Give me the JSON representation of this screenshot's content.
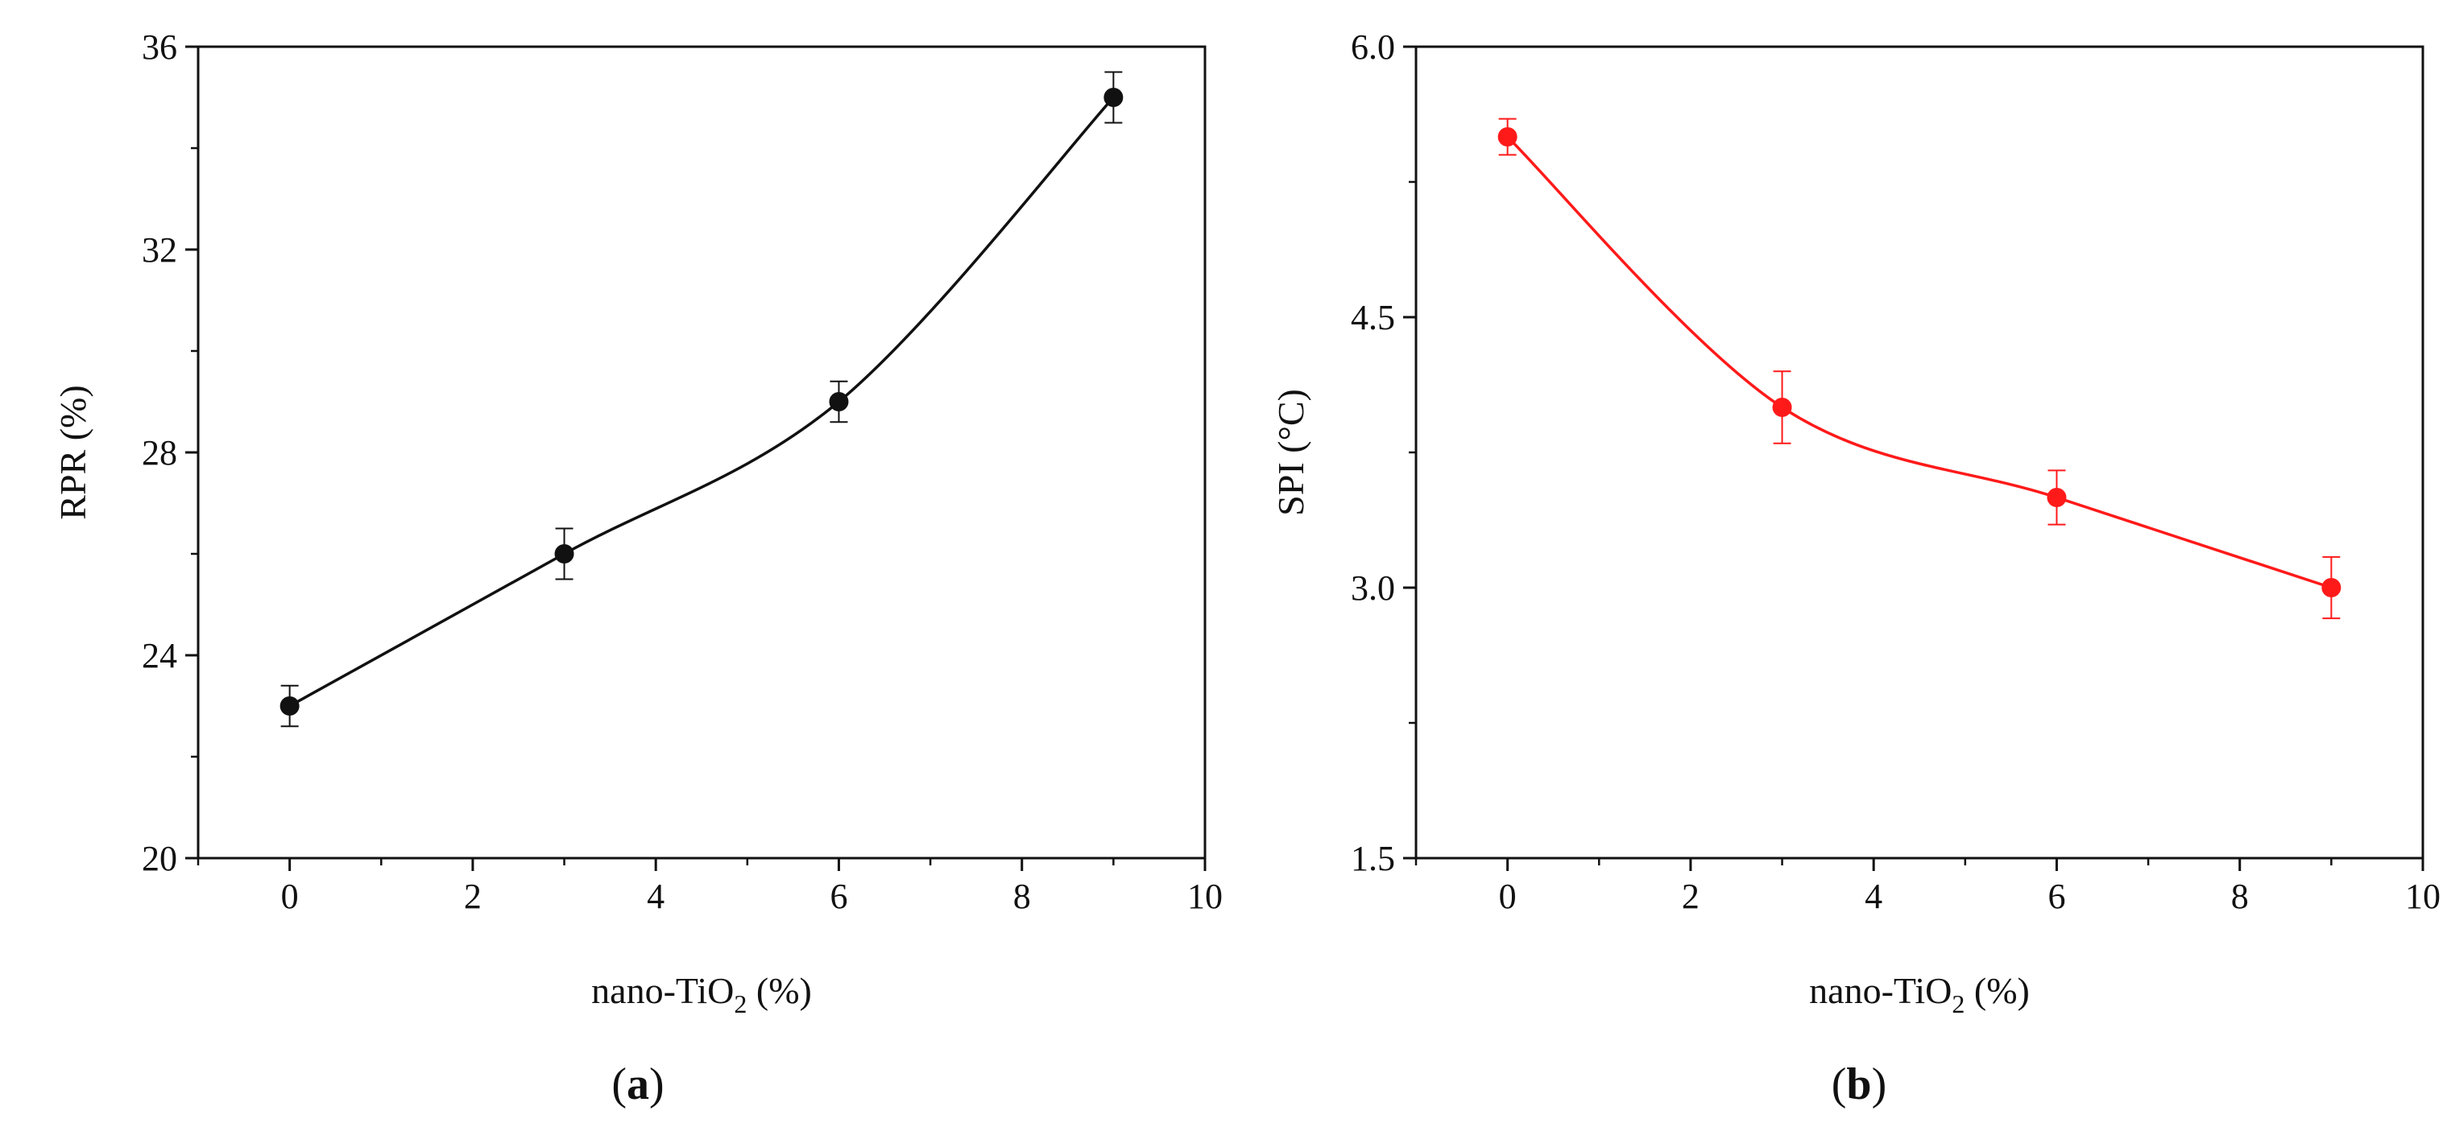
{
  "chart_data": [
    {
      "type": "line",
      "panel_label": "a",
      "xlabel": {
        "main": "nano-TiO",
        "sub": "2",
        "unit": " (%)"
      },
      "ylabel": "RPR (%)",
      "xlim": [
        -1,
        10
      ],
      "ylim": [
        20,
        36
      ],
      "xticks": [
        0,
        2,
        4,
        6,
        8,
        10
      ],
      "yticks": [
        20,
        24,
        28,
        32,
        36
      ],
      "y_minor_step": 2,
      "x_minor_step": 1,
      "grid": false,
      "color": "#111111",
      "series": [
        {
          "name": "RPR",
          "x": [
            0,
            3,
            6,
            9
          ],
          "y": [
            23,
            26,
            29,
            35
          ],
          "err": [
            0.4,
            0.5,
            0.4,
            0.5
          ]
        }
      ]
    },
    {
      "type": "line",
      "panel_label": "b",
      "xlabel": {
        "main": "nano-TiO",
        "sub": "2",
        "unit": " (%)"
      },
      "ylabel": "SPI (°C)",
      "xlim": [
        -1,
        10
      ],
      "ylim": [
        1.5,
        6.0
      ],
      "xticks": [
        0,
        2,
        4,
        6,
        8,
        10
      ],
      "yticks": [
        1.5,
        3.0,
        4.5,
        6.0
      ],
      "y_minor_step": 0.75,
      "x_minor_step": 1,
      "grid": false,
      "color": "#ff1a1a",
      "series": [
        {
          "name": "SPI",
          "x": [
            0,
            3,
            6,
            9
          ],
          "y": [
            5.5,
            4.0,
            3.5,
            3.0
          ],
          "err": [
            0.1,
            0.2,
            0.15,
            0.17
          ]
        }
      ]
    }
  ]
}
